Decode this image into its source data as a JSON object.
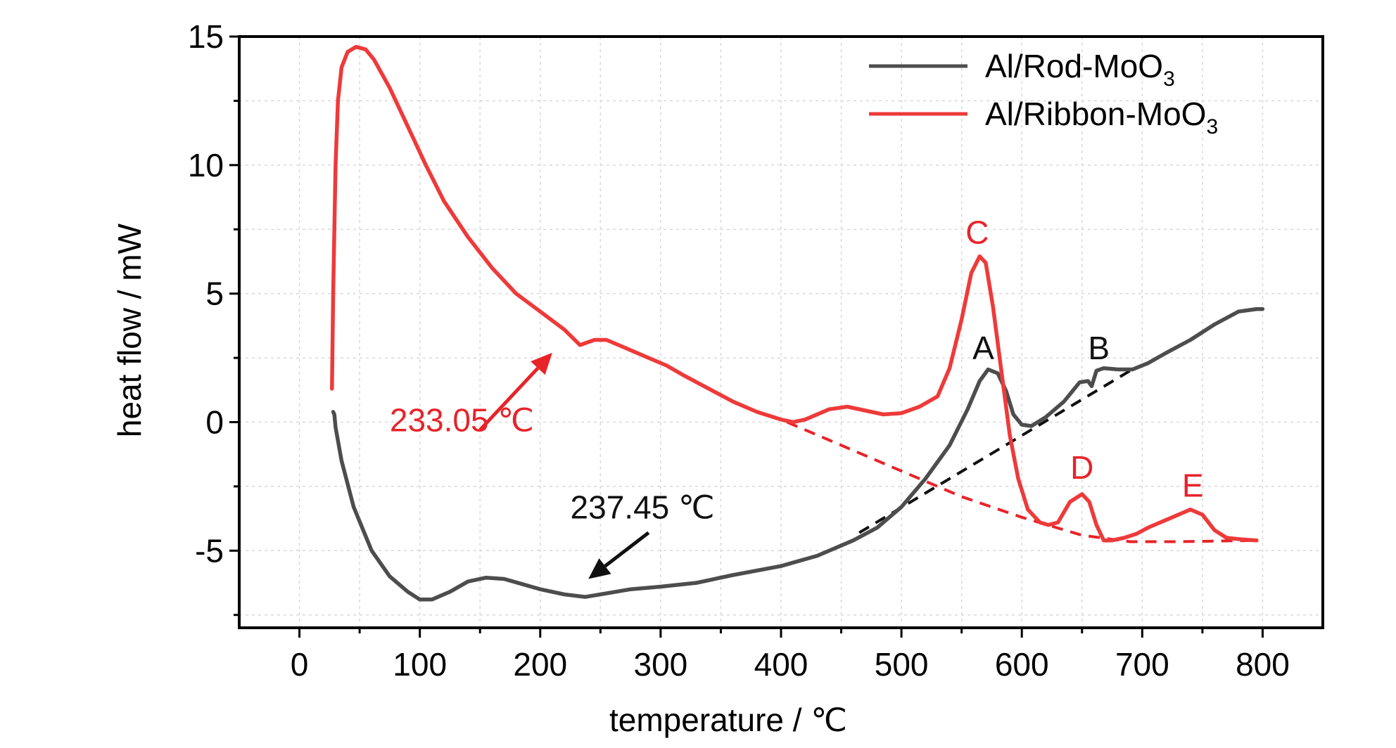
{
  "chart_data": {
    "type": "line",
    "xlabel": "temperature / ℃",
    "ylabel": "heat flow / mW",
    "xlim": [
      -50,
      850
    ],
    "ylim": [
      -8,
      15
    ],
    "xticks": [
      0,
      100,
      200,
      300,
      400,
      500,
      600,
      700,
      800
    ],
    "yticks": [
      -5,
      0,
      5,
      10,
      15
    ],
    "grid": true,
    "legend_position": "top-right",
    "colors": {
      "rod": "#4d4d4d",
      "ribbon": "#ee3a3a",
      "black_anno": "#111111",
      "red_anno": "#e8232a"
    },
    "series": [
      {
        "name": "Al/Rod-MoO3",
        "legend_base": "Al/Rod-MoO",
        "legend_sub": "3",
        "color": "#4d4d4d",
        "points": [
          [
            28,
            0.4
          ],
          [
            29,
            0.3
          ],
          [
            30,
            -0.2
          ],
          [
            35,
            -1.5
          ],
          [
            45,
            -3.3
          ],
          [
            60,
            -5.0
          ],
          [
            75,
            -6.0
          ],
          [
            90,
            -6.6
          ],
          [
            100,
            -6.9
          ],
          [
            110,
            -6.9
          ],
          [
            125,
            -6.6
          ],
          [
            140,
            -6.2
          ],
          [
            155,
            -6.05
          ],
          [
            170,
            -6.1
          ],
          [
            185,
            -6.3
          ],
          [
            200,
            -6.5
          ],
          [
            220,
            -6.7
          ],
          [
            237.45,
            -6.8
          ],
          [
            250,
            -6.7
          ],
          [
            275,
            -6.5
          ],
          [
            300,
            -6.4
          ],
          [
            330,
            -6.25
          ],
          [
            360,
            -5.95
          ],
          [
            400,
            -5.6
          ],
          [
            430,
            -5.2
          ],
          [
            460,
            -4.6
          ],
          [
            480,
            -4.1
          ],
          [
            500,
            -3.3
          ],
          [
            520,
            -2.2
          ],
          [
            540,
            -0.9
          ],
          [
            555,
            0.5
          ],
          [
            565,
            1.6
          ],
          [
            572,
            2.05
          ],
          [
            580,
            1.9
          ],
          [
            587,
            1.2
          ],
          [
            593,
            0.3
          ],
          [
            600,
            -0.1
          ],
          [
            608,
            -0.15
          ],
          [
            620,
            0.2
          ],
          [
            635,
            0.8
          ],
          [
            648,
            1.55
          ],
          [
            655,
            1.6
          ],
          [
            658,
            1.4
          ],
          [
            662,
            2.0
          ],
          [
            668,
            2.1
          ],
          [
            680,
            2.05
          ],
          [
            692,
            2.05
          ],
          [
            705,
            2.3
          ],
          [
            720,
            2.7
          ],
          [
            740,
            3.2
          ],
          [
            760,
            3.8
          ],
          [
            780,
            4.3
          ],
          [
            795,
            4.4
          ],
          [
            800,
            4.4
          ]
        ]
      },
      {
        "name": "Al/Ribbon-MoO3",
        "legend_base": "Al/Ribbon-MoO",
        "legend_sub": "3",
        "color": "#ee3a3a",
        "points": [
          [
            27,
            1.3
          ],
          [
            28,
            5.0
          ],
          [
            30,
            10.0
          ],
          [
            32,
            12.5
          ],
          [
            35,
            13.8
          ],
          [
            40,
            14.4
          ],
          [
            47,
            14.6
          ],
          [
            55,
            14.5
          ],
          [
            62,
            14.1
          ],
          [
            75,
            13.0
          ],
          [
            90,
            11.5
          ],
          [
            105,
            10.0
          ],
          [
            120,
            8.6
          ],
          [
            140,
            7.2
          ],
          [
            160,
            6.0
          ],
          [
            180,
            5.0
          ],
          [
            200,
            4.3
          ],
          [
            220,
            3.6
          ],
          [
            233.05,
            3.0
          ],
          [
            245,
            3.2
          ],
          [
            255,
            3.2
          ],
          [
            270,
            2.9
          ],
          [
            290,
            2.5
          ],
          [
            305,
            2.2
          ],
          [
            320,
            1.8
          ],
          [
            340,
            1.3
          ],
          [
            360,
            0.8
          ],
          [
            380,
            0.4
          ],
          [
            400,
            0.1
          ],
          [
            410,
            0.0
          ],
          [
            420,
            0.1
          ],
          [
            440,
            0.5
          ],
          [
            455,
            0.6
          ],
          [
            470,
            0.45
          ],
          [
            485,
            0.3
          ],
          [
            500,
            0.35
          ],
          [
            515,
            0.6
          ],
          [
            530,
            1.0
          ],
          [
            540,
            2.1
          ],
          [
            550,
            4.0
          ],
          [
            558,
            5.8
          ],
          [
            565,
            6.45
          ],
          [
            570,
            6.2
          ],
          [
            576,
            4.5
          ],
          [
            583,
            2.0
          ],
          [
            590,
            -0.5
          ],
          [
            597,
            -2.2
          ],
          [
            605,
            -3.4
          ],
          [
            615,
            -3.9
          ],
          [
            622,
            -4.0
          ],
          [
            630,
            -3.9
          ],
          [
            640,
            -3.1
          ],
          [
            650,
            -2.8
          ],
          [
            656,
            -3.1
          ],
          [
            662,
            -4.0
          ],
          [
            668,
            -4.6
          ],
          [
            675,
            -4.6
          ],
          [
            685,
            -4.5
          ],
          [
            695,
            -4.35
          ],
          [
            705,
            -4.1
          ],
          [
            715,
            -3.9
          ],
          [
            725,
            -3.7
          ],
          [
            735,
            -3.5
          ],
          [
            740,
            -3.4
          ],
          [
            750,
            -3.6
          ],
          [
            760,
            -4.2
          ],
          [
            770,
            -4.5
          ],
          [
            780,
            -4.55
          ],
          [
            795,
            -4.6
          ]
        ]
      }
    ],
    "baselines": [
      {
        "color": "#e8232a",
        "points": [
          [
            405,
            0.0
          ],
          [
            450,
            -0.9
          ],
          [
            500,
            -1.9
          ],
          [
            550,
            -2.9
          ],
          [
            600,
            -3.7
          ],
          [
            650,
            -4.4
          ],
          [
            690,
            -4.65
          ],
          [
            730,
            -4.65
          ],
          [
            795,
            -4.6
          ]
        ]
      },
      {
        "color": "#111111",
        "points": [
          [
            465,
            -4.3
          ],
          [
            690,
            2.0
          ]
        ]
      }
    ],
    "annotations": [
      {
        "text": "233.05 ℃",
        "color": "#e8232a",
        "at": [
          75,
          -0.35
        ]
      },
      {
        "text": "237.45 ℃",
        "color": "#111111",
        "at": [
          225,
          -3.75
        ]
      },
      {
        "text": "A",
        "color": "#111111",
        "at": [
          568,
          2.45
        ]
      },
      {
        "text": "B",
        "color": "#111111",
        "at": [
          664,
          2.45
        ]
      },
      {
        "text": "C",
        "color": "#e8232a",
        "at": [
          563,
          6.95
        ]
      },
      {
        "text": "D",
        "color": "#e8232a",
        "at": [
          650,
          -2.2
        ]
      },
      {
        "text": "E",
        "color": "#e8232a",
        "at": [
          742,
          -2.9
        ]
      }
    ],
    "arrows": [
      {
        "color": "#e8232a",
        "from": [
          150,
          -0.3
        ],
        "to": [
          210,
          2.7
        ]
      },
      {
        "color": "#111111",
        "from": [
          290,
          -4.3
        ],
        "to": [
          240,
          -6.1
        ]
      }
    ]
  }
}
